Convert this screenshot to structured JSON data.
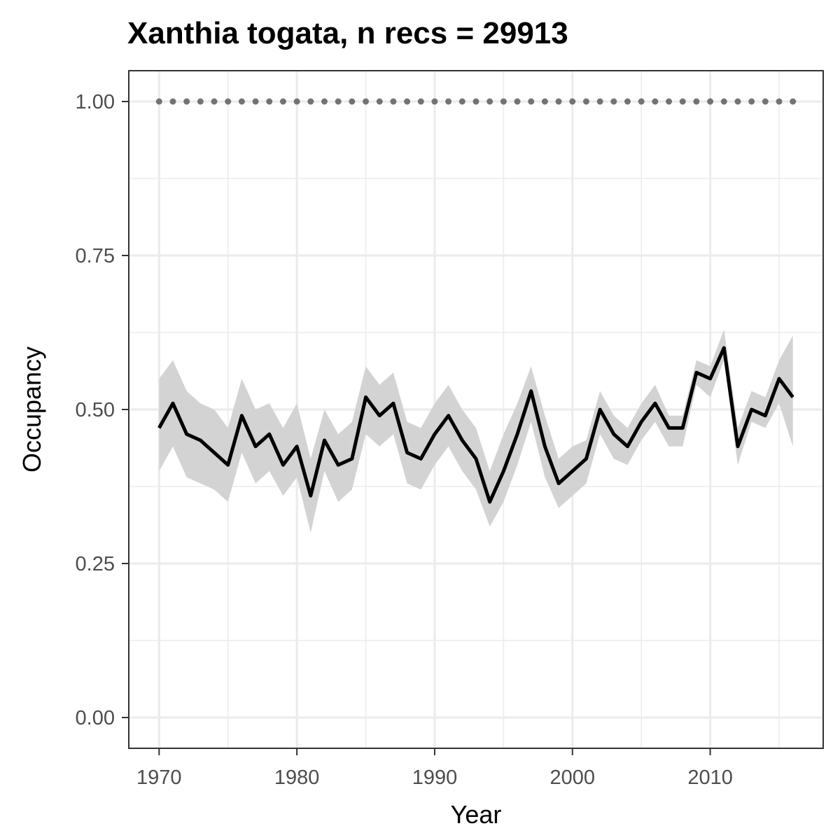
{
  "chart_data": {
    "type": "line",
    "title": "Xanthia togata, n recs = 29913",
    "xlabel": "Year",
    "ylabel": "Occupancy",
    "xlim": [
      1967.8,
      2018.2
    ],
    "ylim": [
      -0.05,
      1.05
    ],
    "x_ticks": [
      1970,
      1980,
      1990,
      2000,
      2010
    ],
    "x_tick_labels": [
      "1970",
      "1980",
      "1990",
      "2000",
      "2010"
    ],
    "y_ticks": [
      0,
      0.25,
      0.5,
      0.75,
      1.0
    ],
    "y_tick_labels": [
      "0.00",
      "0.25",
      "0.50",
      "0.75",
      "1.00"
    ],
    "grid": true,
    "colors": {
      "line": "#000000",
      "ribbon": "#d3d3d3",
      "dots": "#737373",
      "panel_border": "#333333",
      "grid": "#ebebeb"
    },
    "x": [
      1970,
      1971,
      1972,
      1973,
      1974,
      1975,
      1976,
      1977,
      1978,
      1979,
      1980,
      1981,
      1982,
      1983,
      1984,
      1985,
      1986,
      1987,
      1988,
      1989,
      1990,
      1991,
      1992,
      1993,
      1994,
      1995,
      1996,
      1997,
      1998,
      1999,
      2000,
      2001,
      2002,
      2003,
      2004,
      2005,
      2006,
      2007,
      2008,
      2009,
      2010,
      2011,
      2012,
      2013,
      2014,
      2015,
      2016
    ],
    "series": [
      {
        "values": [
          0.47,
          0.51,
          0.46,
          0.45,
          0.43,
          0.41,
          0.49,
          0.44,
          0.46,
          0.41,
          0.44,
          0.36,
          0.45,
          0.41,
          0.42,
          0.52,
          0.49,
          0.51,
          0.43,
          0.42,
          0.46,
          0.49,
          0.45,
          0.42,
          0.35,
          0.4,
          0.46,
          0.53,
          0.44,
          0.38,
          0.4,
          0.42,
          0.5,
          0.46,
          0.44,
          0.48,
          0.51,
          0.47,
          0.47,
          0.56,
          0.55,
          0.6,
          0.44,
          0.5,
          0.49,
          0.55,
          0.52
        ],
        "lower": [
          0.4,
          0.44,
          0.39,
          0.38,
          0.37,
          0.35,
          0.43,
          0.38,
          0.4,
          0.36,
          0.39,
          0.3,
          0.4,
          0.35,
          0.37,
          0.46,
          0.44,
          0.46,
          0.38,
          0.37,
          0.41,
          0.44,
          0.4,
          0.37,
          0.31,
          0.35,
          0.41,
          0.48,
          0.39,
          0.34,
          0.36,
          0.38,
          0.46,
          0.42,
          0.41,
          0.45,
          0.48,
          0.44,
          0.44,
          0.54,
          0.52,
          0.58,
          0.41,
          0.48,
          0.47,
          0.51,
          0.44
        ],
        "upper": [
          0.55,
          0.58,
          0.53,
          0.51,
          0.5,
          0.47,
          0.55,
          0.5,
          0.51,
          0.47,
          0.51,
          0.42,
          0.5,
          0.46,
          0.48,
          0.57,
          0.54,
          0.56,
          0.48,
          0.47,
          0.51,
          0.54,
          0.5,
          0.47,
          0.4,
          0.46,
          0.51,
          0.57,
          0.49,
          0.42,
          0.44,
          0.45,
          0.53,
          0.49,
          0.47,
          0.51,
          0.54,
          0.49,
          0.49,
          0.58,
          0.57,
          0.63,
          0.47,
          0.53,
          0.52,
          0.58,
          0.62
        ]
      }
    ],
    "reference_points": {
      "y": 1.0,
      "x": [
        1970,
        1971,
        1972,
        1973,
        1974,
        1975,
        1976,
        1977,
        1978,
        1979,
        1980,
        1981,
        1982,
        1983,
        1984,
        1985,
        1986,
        1987,
        1988,
        1989,
        1990,
        1991,
        1992,
        1993,
        1994,
        1995,
        1996,
        1997,
        1998,
        1999,
        2000,
        2001,
        2002,
        2003,
        2004,
        2005,
        2006,
        2007,
        2008,
        2009,
        2010,
        2011,
        2012,
        2013,
        2014,
        2015,
        2016
      ]
    }
  }
}
